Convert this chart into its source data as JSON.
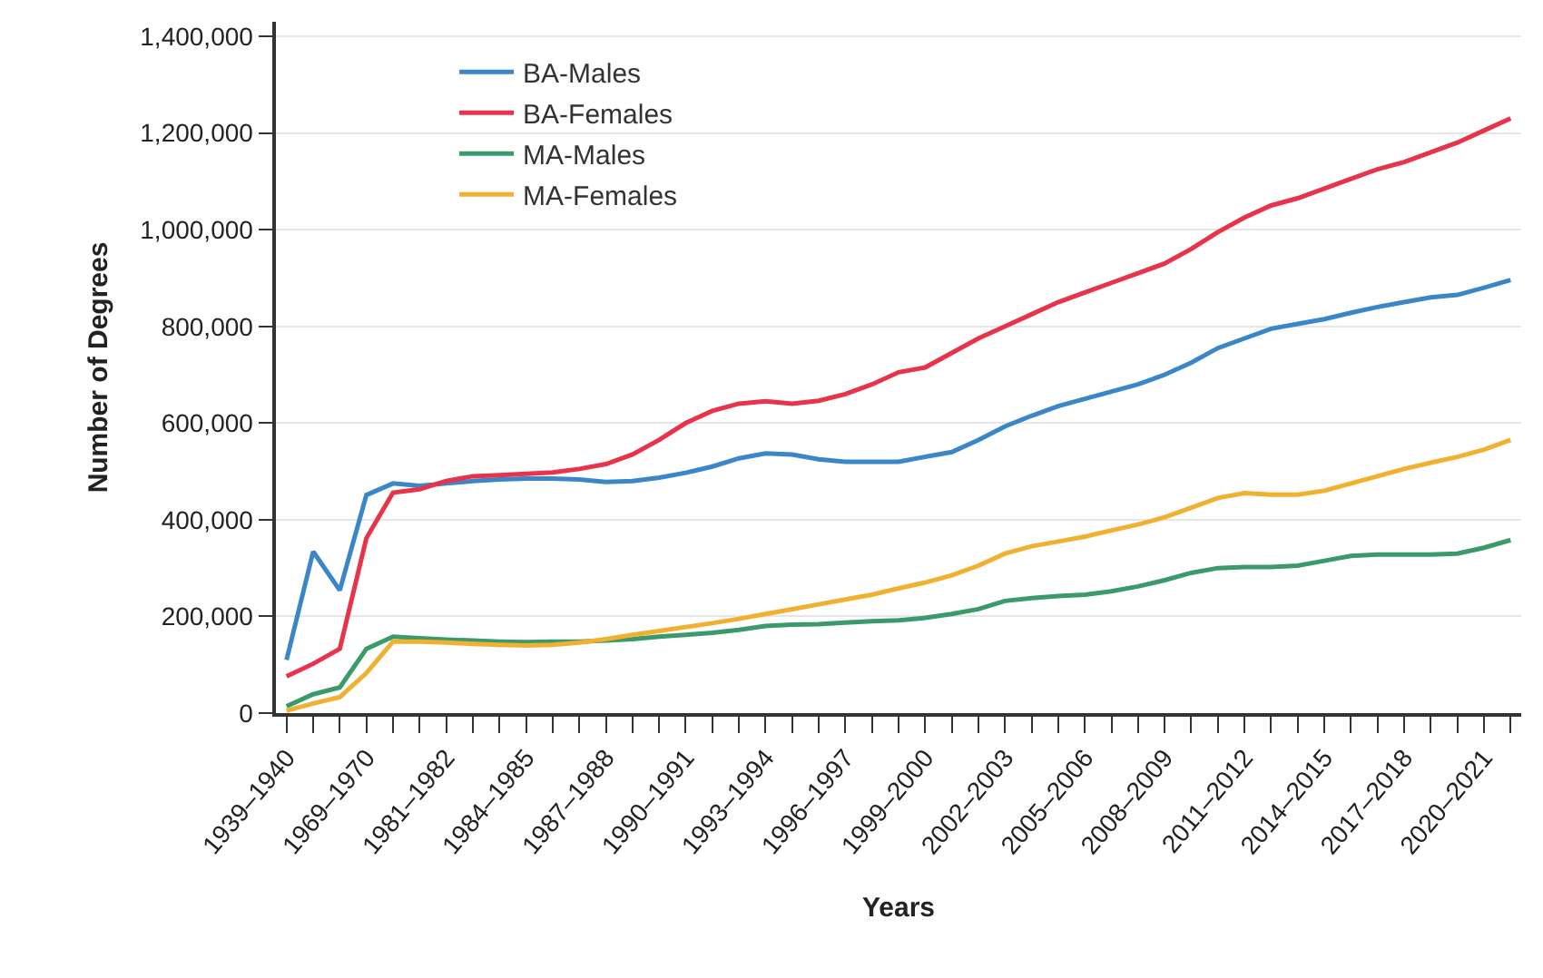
{
  "chart_data": {
    "type": "line",
    "xlabel": "Years",
    "ylabel": "Number of Degrees",
    "categories": [
      "1939–1940",
      null,
      null,
      "1969–1970",
      null,
      null,
      "1981–1982",
      null,
      null,
      "1984–1985",
      null,
      null,
      "1987–1988",
      null,
      null,
      "1990–1991",
      null,
      null,
      "1993–1994",
      null,
      null,
      "1996–1997",
      null,
      null,
      "1999–2000",
      null,
      null,
      "2002–2003",
      null,
      null,
      "2005–2006",
      null,
      null,
      "2008–2009",
      null,
      null,
      "2011–2012",
      null,
      null,
      "2014–2015",
      null,
      null,
      "2017–2018",
      null,
      null,
      "2020–2021",
      null
    ],
    "series": [
      {
        "name": "BA-Males",
        "color": "#3a86c8",
        "values": [
          110000,
          334000,
          254000,
          451000,
          475000,
          470000,
          475000,
          480000,
          483000,
          485000,
          485000,
          483000,
          478000,
          480000,
          487000,
          497000,
          510000,
          527000,
          537000,
          535000,
          525000,
          520000,
          520000,
          520000,
          530000,
          540000,
          565000,
          593000,
          615000,
          635000,
          650000,
          665000,
          680000,
          700000,
          725000,
          755000,
          775000,
          795000,
          805000,
          815000,
          828000,
          840000,
          850000,
          860000,
          865000,
          880000,
          896000
        ]
      },
      {
        "name": "BA-Females",
        "color": "#e8334a",
        "values": [
          76000,
          102000,
          133000,
          362000,
          456000,
          463000,
          480000,
          490000,
          492000,
          495000,
          498000,
          505000,
          515000,
          535000,
          565000,
          600000,
          625000,
          640000,
          645000,
          640000,
          646000,
          660000,
          680000,
          705000,
          715000,
          745000,
          775000,
          800000,
          825000,
          850000,
          870000,
          890000,
          910000,
          930000,
          960000,
          995000,
          1025000,
          1050000,
          1065000,
          1085000,
          1105000,
          1125000,
          1140000,
          1160000,
          1180000,
          1205000,
          1230000
        ]
      },
      {
        "name": "MA-Males",
        "color": "#3a9a6a",
        "values": [
          14000,
          39000,
          53000,
          133000,
          158000,
          155000,
          152000,
          150000,
          148000,
          147000,
          148000,
          148000,
          150000,
          153000,
          158000,
          162000,
          166000,
          172000,
          180000,
          183000,
          184000,
          187000,
          190000,
          192000,
          197000,
          205000,
          215000,
          232000,
          238000,
          242000,
          245000,
          252000,
          262000,
          275000,
          290000,
          300000,
          302000,
          302000,
          305000,
          315000,
          325000,
          328000,
          328000,
          328000,
          330000,
          342000,
          358000
        ]
      },
      {
        "name": "MA-Females",
        "color": "#f0b030",
        "values": [
          5000,
          20000,
          33000,
          83000,
          148000,
          148000,
          146000,
          143000,
          141000,
          140000,
          141000,
          146000,
          153000,
          162000,
          170000,
          178000,
          186000,
          195000,
          205000,
          215000,
          225000,
          235000,
          245000,
          258000,
          270000,
          285000,
          305000,
          330000,
          345000,
          355000,
          365000,
          378000,
          390000,
          405000,
          425000,
          445000,
          455000,
          452000,
          452000,
          460000,
          475000,
          490000,
          505000,
          518000,
          530000,
          545000,
          565000
        ]
      }
    ],
    "ylim": [
      0,
      1430000
    ],
    "yticks": [
      0,
      {
        "value": 200000,
        "label": "200,000"
      },
      {
        "value": 400000,
        "label": "400,000"
      },
      {
        "value": 600000,
        "label": "600,000"
      },
      {
        "value": 800000,
        "label": "800,000"
      },
      {
        "value": 1000000,
        "label": "1,000,000"
      },
      {
        "value": 1200000,
        "label": "1,200,000"
      },
      {
        "value": 1400000,
        "label": "1,400,000"
      }
    ],
    "grid": "y",
    "legend": "top left",
    "marker": "none",
    "line_style": "solid"
  }
}
